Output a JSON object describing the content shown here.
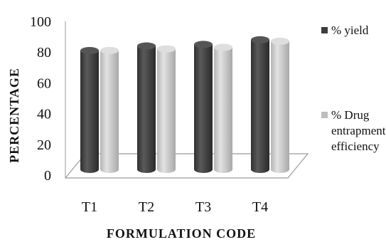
{
  "chart_data": {
    "type": "bar",
    "title": "",
    "xlabel": "FORMULATION CODE",
    "ylabel": "PERCENTAGE",
    "categories": [
      "T1",
      "T2",
      "T3",
      "T4"
    ],
    "ylim": [
      0,
      100
    ],
    "yticks": [
      "0",
      "20",
      "40",
      "60",
      "80",
      "100"
    ],
    "grid": false,
    "legend_position": "right",
    "series": [
      {
        "name": "% yield",
        "values": [
          81,
          84,
          85,
          88
        ],
        "color": "#4a4a4a"
      },
      {
        "name": "% Drug entrapment efficiency",
        "values": [
          82,
          83,
          84,
          88
        ],
        "color": "#c8c8c8"
      }
    ]
  }
}
